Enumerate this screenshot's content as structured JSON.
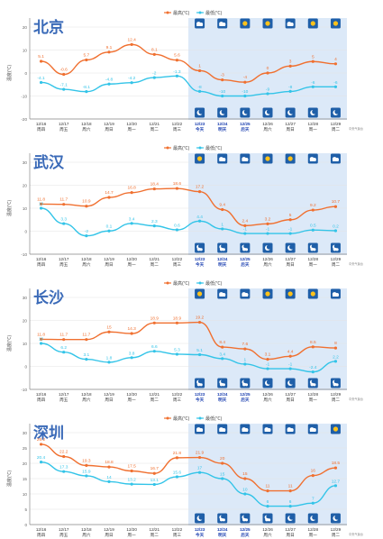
{
  "legend": {
    "high": "最高(℃)",
    "low": "最低(℃)"
  },
  "colors": {
    "high": "#f07030",
    "low": "#33c4e8",
    "forecast_bg": "#dce9f8",
    "city": "#3a6ab8",
    "icon_bg": "#1f5fa8"
  },
  "ylabel": "温度(℃)",
  "source": "中央气象台",
  "chart_data": [
    {
      "type": "line",
      "city": "北京",
      "ylim": [
        -20,
        20
      ],
      "yticks": [
        -20,
        -10,
        0,
        10,
        20
      ],
      "dates": [
        "12/16",
        "12/17",
        "12/18",
        "12/19",
        "12/20",
        "12/21",
        "12/22",
        "12/23",
        "12/24",
        "12/25",
        "12/26",
        "12/27",
        "12/28",
        "12/29"
      ],
      "weekdays": [
        "周四",
        "周五",
        "周六",
        "周日",
        "周一",
        "周二",
        "周三",
        "今天",
        "明天",
        "后天",
        "周六",
        "周日",
        "周一",
        "周二"
      ],
      "series": [
        {
          "name": "最高(℃)",
          "values": [
            5.1,
            -0.6,
            5.7,
            9.1,
            12.4,
            8.1,
            5.6,
            1,
            -3,
            -4,
            0,
            3,
            5,
            4
          ]
        },
        {
          "name": "最低(℃)",
          "values": [
            -4.1,
            -7.1,
            -8.1,
            -4.8,
            -4.2,
            -2,
            -1.3,
            -8,
            -10,
            -10,
            -9,
            -8,
            -6,
            -6
          ]
        }
      ],
      "icons_day": [
        "cloudy-icon",
        "cloudy-icon",
        "sunny-icon",
        "sunny-icon",
        "cloudy-icon",
        "sunny-icon",
        "sunny-icon"
      ],
      "icons_night": [
        "moon-icon",
        "moon-icon",
        "moon-icon",
        "moon-icon",
        "moon-icon",
        "moon-icon",
        "moon-icon"
      ]
    },
    {
      "type": "line",
      "city": "武汉",
      "ylim": [
        -10,
        30
      ],
      "yticks": [
        -10,
        0,
        10,
        20,
        30
      ],
      "dates": [
        "12/16",
        "12/17",
        "12/18",
        "12/19",
        "12/20",
        "12/21",
        "12/22",
        "12/23",
        "12/24",
        "12/25",
        "12/26",
        "12/27",
        "12/28",
        "12/29"
      ],
      "weekdays": [
        "周四",
        "周五",
        "周六",
        "周日",
        "周一",
        "周二",
        "周三",
        "今天",
        "明天",
        "后天",
        "周六",
        "周日",
        "周一",
        "周二"
      ],
      "series": [
        {
          "name": "最高(℃)",
          "values": [
            11.8,
            11.7,
            10.9,
            14.7,
            16.8,
            18.4,
            18.6,
            17.2,
            9.4,
            2.4,
            3.2,
            5,
            9.2,
            10.7
          ]
        },
        {
          "name": "最低(℃)",
          "values": [
            10,
            3.3,
            -2,
            0.1,
            3.4,
            2.3,
            0.6,
            4.4,
            1,
            -1,
            -1,
            -1,
            0.5,
            0.2
          ]
        }
      ],
      "icons_day": [
        "sunny-icon",
        "cloudy-icon",
        "cloudy-icon",
        "sunny-icon",
        "sunny-icon",
        "cloudy-icon",
        "cloudy-icon"
      ],
      "icons_night": [
        "cloudy-night-icon",
        "cloudy-night-icon",
        "cloudy-night-icon",
        "moon-icon",
        "moon-icon",
        "cloudy-night-icon",
        "cloudy-night-icon"
      ]
    },
    {
      "type": "line",
      "city": "长沙",
      "ylim": [
        -10,
        30
      ],
      "yticks": [
        -10,
        0,
        10,
        20,
        30
      ],
      "dates": [
        "12/16",
        "12/17",
        "12/18",
        "12/19",
        "12/20",
        "12/21",
        "12/22",
        "12/23",
        "12/24",
        "12/25",
        "12/26",
        "12/27",
        "12/28",
        "12/29"
      ],
      "weekdays": [
        "周四",
        "周五",
        "周六",
        "周日",
        "周一",
        "周二",
        "周三",
        "今天",
        "明天",
        "后天",
        "周六",
        "周日",
        "周一",
        "周二"
      ],
      "series": [
        {
          "name": "最高(℃)",
          "values": [
            11.8,
            11.7,
            11.7,
            15,
            14.3,
            18.9,
            18.9,
            19.2,
            8.4,
            7.6,
            3.1,
            4.4,
            8.5,
            8
          ]
        },
        {
          "name": "最低(℃)",
          "values": [
            10,
            6.2,
            3.1,
            1.8,
            3.8,
            6.6,
            5.3,
            5.1,
            3.4,
            1,
            -1,
            -1,
            -2.4,
            2.2
          ]
        }
      ],
      "icons_day": [
        "sunny-icon",
        "cloudy-icon",
        "cloudy-icon",
        "sunny-icon",
        "sunny-icon",
        "sunny-icon",
        "cloudy-icon"
      ],
      "icons_night": [
        "cloudy-night-icon",
        "cloudy-night-icon",
        "cloudy-night-icon",
        "moon-icon",
        "moon-icon",
        "cloudy-night-icon",
        "cloudy-night-icon"
      ]
    },
    {
      "type": "line",
      "city": "深圳",
      "ylim": [
        0,
        30
      ],
      "yticks": [
        0,
        5,
        10,
        15,
        20,
        25,
        30
      ],
      "dates": [
        "12/16",
        "12/17",
        "12/18",
        "12/19",
        "12/20",
        "12/21",
        "12/22",
        "12/23",
        "12/24",
        "12/25",
        "12/26",
        "12/27",
        "12/28",
        "12/29"
      ],
      "weekdays": [
        "周四",
        "周五",
        "周六",
        "周日",
        "周一",
        "周二",
        "周三",
        "今天",
        "明天",
        "后天",
        "周六",
        "周日",
        "周一",
        "周二"
      ],
      "series": [
        {
          "name": "最高(℃)",
          "values": [
            26.2,
            22.2,
            19.3,
            18.8,
            17.5,
            16.7,
            21.8,
            21.9,
            20,
            15,
            11,
            11,
            16,
            18.5
          ]
        },
        {
          "name": "最低(℃)",
          "values": [
            20.4,
            17.3,
            15.9,
            14,
            13.2,
            13.1,
            15.6,
            17,
            15,
            10,
            6,
            6,
            7,
            12.7
          ]
        }
      ],
      "icons_day": [
        "cloudy-icon",
        "cloudy-icon",
        "cloudy-icon",
        "cloudy-icon",
        "cloudy-icon",
        "cloudy-icon",
        "sunny-icon"
      ],
      "icons_night": [
        "moon-icon",
        "cloudy-night-icon",
        "cloudy-night-icon",
        "cloudy-night-icon",
        "moon-icon",
        "moon-icon",
        "moon-icon"
      ]
    }
  ]
}
